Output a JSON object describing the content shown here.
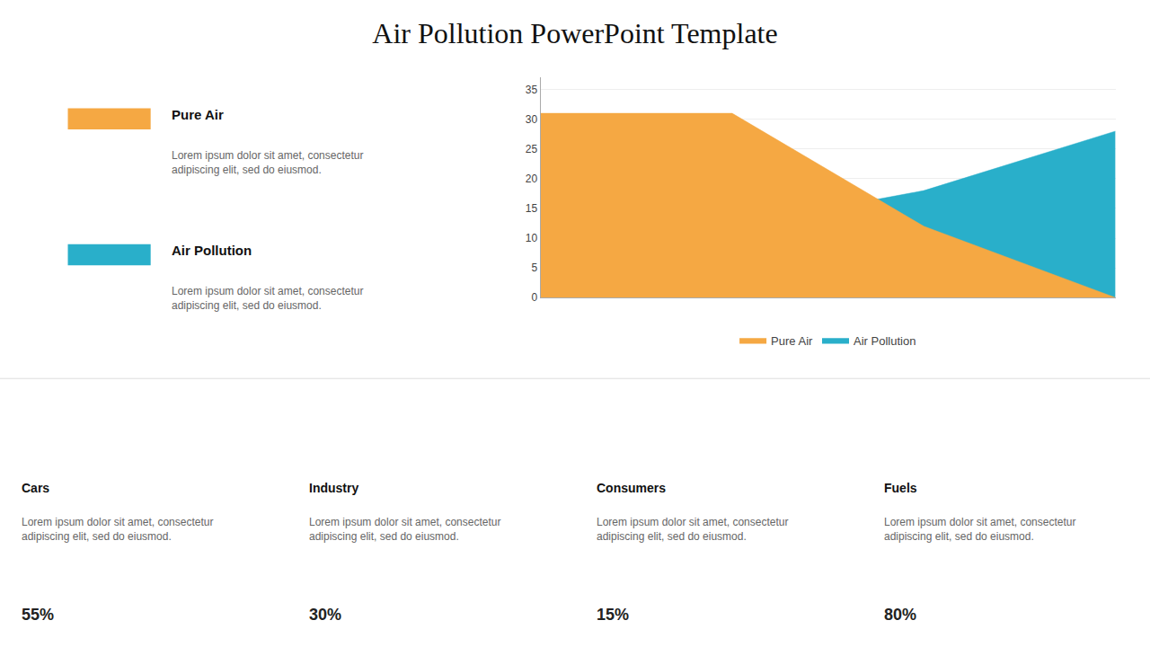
{
  "chart_data": {
    "type": "area",
    "title": "Air Pollution PowerPoint Template",
    "x": [
      0,
      1,
      2,
      3
    ],
    "series": [
      {
        "name": "Pure Air",
        "color": "#F5A843",
        "values": [
          31,
          31,
          12,
          0
        ]
      },
      {
        "name": "Air Pollution",
        "color": "#29AFCA",
        "values": [
          12,
          12,
          18,
          28
        ]
      }
    ],
    "xlim": [
      0,
      3
    ],
    "ylim": [
      0,
      37
    ],
    "yticks": [
      0,
      5,
      10,
      15,
      20,
      25,
      30,
      35
    ],
    "grid": true,
    "legend": "bottom",
    "tick_labels": "y",
    "annotations": [
      "Lorem ipsum dolor sit amet, consectetur\nadipiscing elit, sed do eiusmod.",
      "Lorem ipsum dolor sit amet, consectetur\nadipiscing elit, sed do eiusmod.",
      "Cars",
      "Lorem ipsum dolor sit amet, consectetur\nadipiscing elit, sed do eiusmod.",
      "55%",
      "Industry",
      "Lorem ipsum dolor sit amet, consectetur\nadipiscing elit, sed do eiusmod.",
      "30%",
      "Consumers",
      "Lorem ipsum dolor sit amet, consectetur\nadipiscing elit, sed do eiusmod.",
      "15%",
      "Fuels",
      "Lorem ipsum dolor sit amet, consectetur\nadipiscing elit, sed do eiusmod.",
      "80%"
    ]
  }
}
